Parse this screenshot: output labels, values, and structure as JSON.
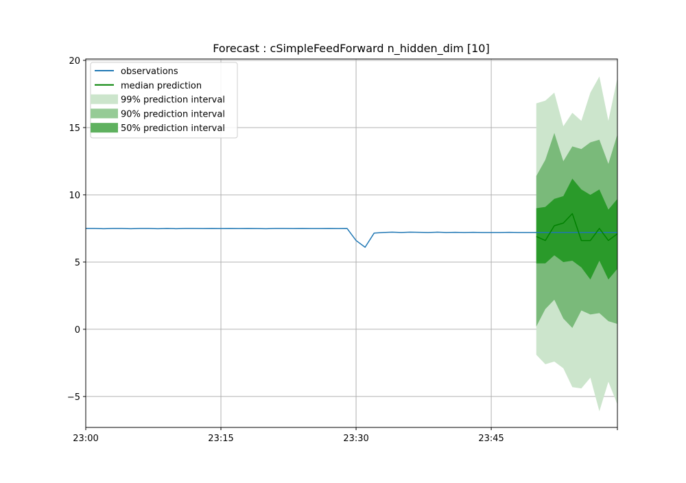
{
  "figure": {
    "title": "Forecast : cSimpleFeedForward n_hidden_dim [10]"
  },
  "legend": {
    "placement": "top-left",
    "items": [
      {
        "label": "observations",
        "kind": "line",
        "color": "#1f77b4"
      },
      {
        "label": "median prediction",
        "kind": "line",
        "color": "#008000"
      },
      {
        "label": "99% prediction interval",
        "kind": "band",
        "color": "#cce5cc"
      },
      {
        "label": "90% prediction interval",
        "kind": "band",
        "color": "#96cb96"
      },
      {
        "label": "50% prediction interval",
        "kind": "band",
        "color": "#5fb15f"
      }
    ]
  },
  "colors": {
    "observations": "#1f77b4",
    "median": "#008000",
    "band99": "#cce5cc",
    "band90": "#7aba7a",
    "band50": "#2a9a2a",
    "grid": "#b0b0b0"
  },
  "chart_data": {
    "type": "line",
    "title": "Forecast : cSimpleFeedForward n_hidden_dim [10]",
    "xlabel": "",
    "ylabel": "",
    "grid": true,
    "x_unit": "time",
    "xlim": [
      "23:00",
      "23:59"
    ],
    "ylim": [
      -7.3,
      20.1
    ],
    "x_ticks": [
      "23:00",
      "23:15",
      "23:30",
      "23:45"
    ],
    "y_ticks": [
      -5,
      0,
      5,
      10,
      15,
      20
    ],
    "y_tick_labels": [
      "−5",
      "0",
      "5",
      "10",
      "15",
      "20"
    ],
    "series": [
      {
        "name": "observations",
        "x": [
          "23:00",
          "23:01",
          "23:02",
          "23:03",
          "23:04",
          "23:05",
          "23:06",
          "23:07",
          "23:08",
          "23:09",
          "23:10",
          "23:11",
          "23:12",
          "23:13",
          "23:14",
          "23:15",
          "23:16",
          "23:17",
          "23:18",
          "23:19",
          "23:20",
          "23:21",
          "23:22",
          "23:23",
          "23:24",
          "23:25",
          "23:26",
          "23:27",
          "23:28",
          "23:29",
          "23:30",
          "23:31",
          "23:32",
          "23:33",
          "23:34",
          "23:35",
          "23:36",
          "23:37",
          "23:38",
          "23:39",
          "23:40",
          "23:41",
          "23:42",
          "23:43",
          "23:44",
          "23:45",
          "23:46",
          "23:47",
          "23:48",
          "23:49",
          "23:50",
          "23:51",
          "23:52",
          "23:53",
          "23:54",
          "23:55",
          "23:56",
          "23:57",
          "23:58",
          "23:59"
        ],
        "values": [
          7.5,
          7.5,
          7.48,
          7.5,
          7.5,
          7.48,
          7.5,
          7.5,
          7.48,
          7.5,
          7.48,
          7.5,
          7.5,
          7.49,
          7.5,
          7.49,
          7.5,
          7.49,
          7.5,
          7.49,
          7.48,
          7.5,
          7.5,
          7.49,
          7.5,
          7.49,
          7.49,
          7.5,
          7.49,
          7.5,
          6.6,
          6.1,
          7.15,
          7.2,
          7.22,
          7.2,
          7.22,
          7.21,
          7.2,
          7.22,
          7.2,
          7.21,
          7.2,
          7.21,
          7.2,
          7.2,
          7.2,
          7.21,
          7.2,
          7.2,
          7.2,
          7.2,
          7.2,
          7.2,
          7.2,
          7.2,
          7.2,
          7.2,
          7.2,
          7.2
        ]
      },
      {
        "name": "median prediction",
        "x": [
          "23:50",
          "23:51",
          "23:52",
          "23:53",
          "23:54",
          "23:55",
          "23:56",
          "23:57",
          "23:58",
          "23:59"
        ],
        "values": [
          6.9,
          6.6,
          7.7,
          7.9,
          8.6,
          6.6,
          6.6,
          7.5,
          6.6,
          7.1
        ]
      }
    ],
    "intervals": [
      {
        "name": "99% prediction interval",
        "x": [
          "23:50",
          "23:51",
          "23:52",
          "23:53",
          "23:54",
          "23:55",
          "23:56",
          "23:57",
          "23:58",
          "23:59"
        ],
        "lower": [
          -1.9,
          -2.6,
          -2.4,
          -2.9,
          -4.3,
          -4.4,
          -3.6,
          -6.1,
          -3.9,
          -5.6
        ],
        "upper": [
          16.8,
          17.0,
          17.6,
          15.1,
          16.1,
          15.5,
          17.6,
          18.8,
          15.5,
          18.7
        ]
      },
      {
        "name": "90% prediction interval",
        "x": [
          "23:50",
          "23:51",
          "23:52",
          "23:53",
          "23:54",
          "23:55",
          "23:56",
          "23:57",
          "23:58",
          "23:59"
        ],
        "lower": [
          0.2,
          1.5,
          2.2,
          0.8,
          0.1,
          1.4,
          1.1,
          1.2,
          0.6,
          0.4
        ],
        "upper": [
          11.4,
          12.6,
          14.6,
          12.5,
          13.6,
          13.4,
          13.9,
          14.1,
          12.3,
          14.5
        ]
      },
      {
        "name": "50% prediction interval",
        "x": [
          "23:50",
          "23:51",
          "23:52",
          "23:53",
          "23:54",
          "23:55",
          "23:56",
          "23:57",
          "23:58",
          "23:59"
        ],
        "lower": [
          4.9,
          4.9,
          5.5,
          5.0,
          5.1,
          4.6,
          3.7,
          5.1,
          3.7,
          4.5
        ],
        "upper": [
          9.0,
          9.1,
          9.7,
          9.9,
          11.2,
          10.4,
          10.0,
          10.4,
          8.9,
          9.7
        ]
      }
    ]
  }
}
